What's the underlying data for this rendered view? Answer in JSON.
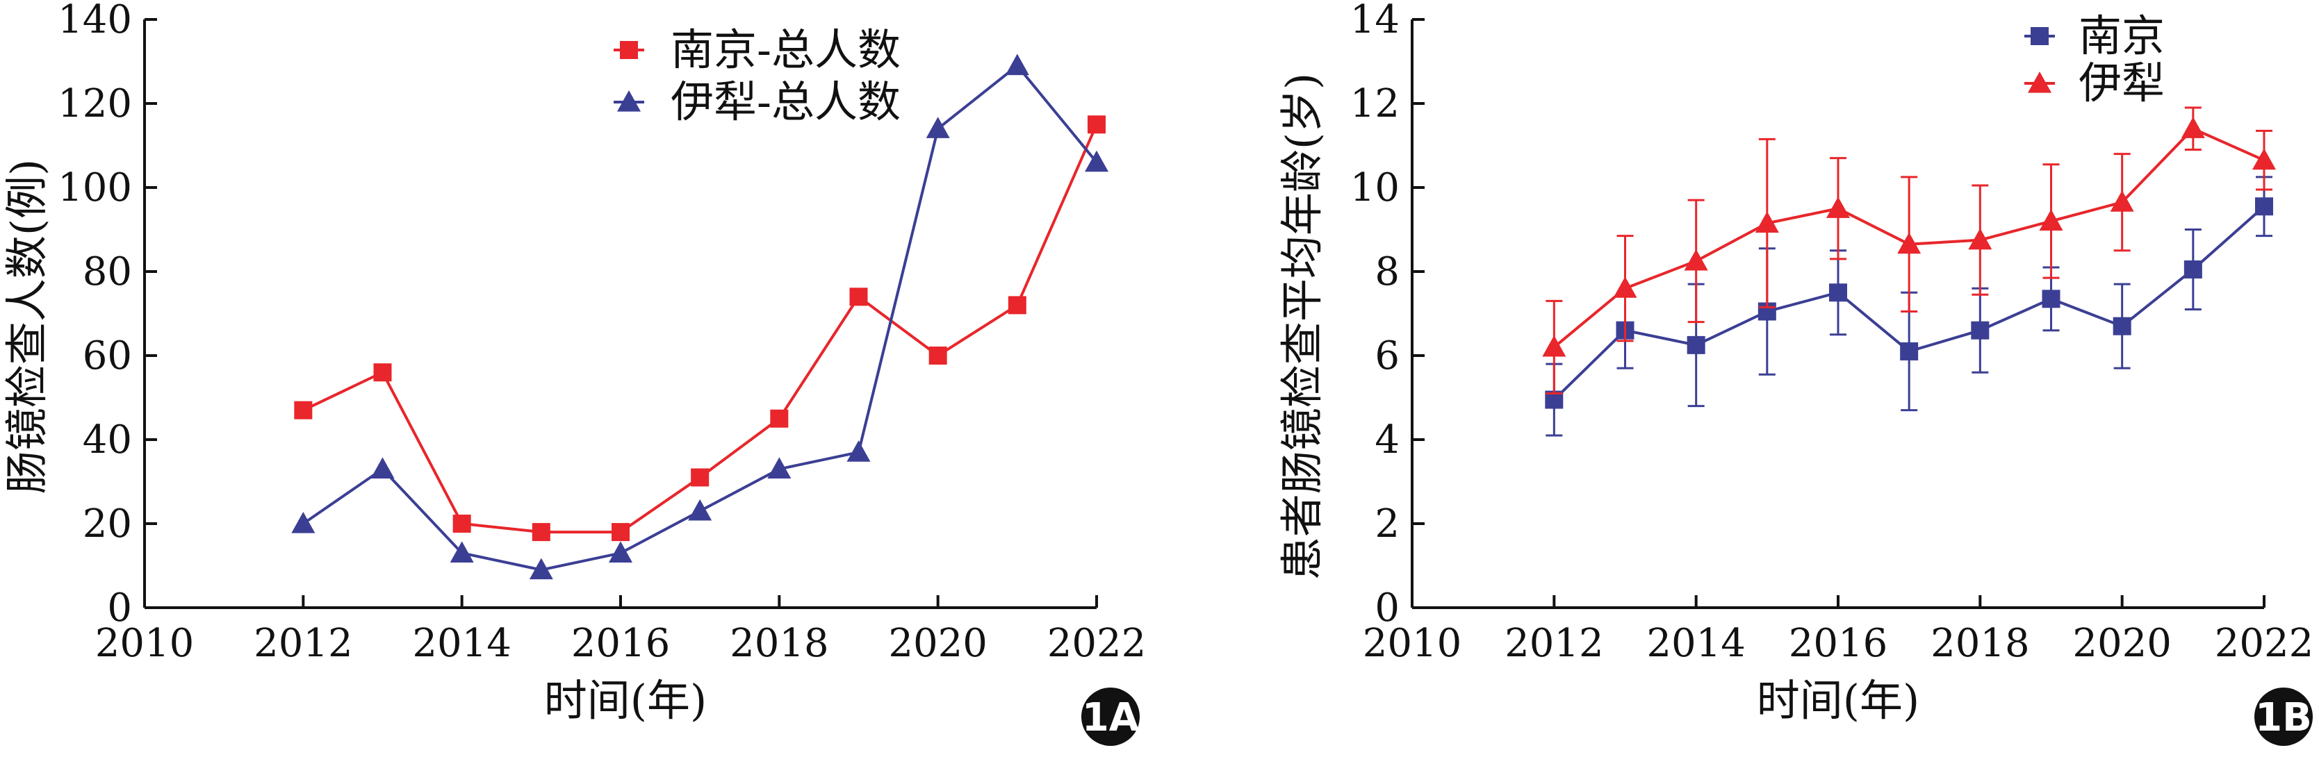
{
  "chart_data": [
    {
      "panel": "1A",
      "type": "line",
      "xlabel": "时间(年)",
      "ylabel": "肠镜检查人数(例)",
      "xlim": [
        2010,
        2022
      ],
      "ylim": [
        0,
        140
      ],
      "xticks": [
        "2010",
        "2012",
        "2014",
        "2016",
        "2018",
        "2020",
        "2022"
      ],
      "yticks": [
        "0",
        "20",
        "40",
        "60",
        "80",
        "100",
        "120",
        "140"
      ],
      "legend_position": "top-right",
      "x": [
        2012,
        2013,
        2014,
        2015,
        2016,
        2017,
        2018,
        2019,
        2020,
        2021,
        2022
      ],
      "series": [
        {
          "name": "南京-总人数",
          "color": "#e8262b",
          "marker": "square",
          "values": [
            47,
            56,
            20,
            18,
            18,
            31,
            45,
            74,
            60,
            72,
            115
          ]
        },
        {
          "name": "伊犁-总人数",
          "color": "#3b3f94",
          "marker": "triangle",
          "values": [
            20,
            33,
            13,
            9,
            13,
            23,
            33,
            37,
            114,
            129,
            106
          ]
        }
      ]
    },
    {
      "panel": "1B",
      "type": "line",
      "xlabel": "时间(年)",
      "ylabel": "患者肠镜检查平均年龄(岁)",
      "xlim": [
        2010,
        2022
      ],
      "ylim": [
        0,
        14
      ],
      "xticks": [
        "2010",
        "2012",
        "2014",
        "2016",
        "2018",
        "2020",
        "2022"
      ],
      "yticks": [
        "0",
        "2",
        "4",
        "6",
        "8",
        "10",
        "12",
        "14"
      ],
      "legend_position": "top-right",
      "x": [
        2012,
        2013,
        2014,
        2015,
        2016,
        2017,
        2018,
        2019,
        2020,
        2021,
        2022
      ],
      "series": [
        {
          "name": "南京",
          "color": "#3b3f94",
          "marker": "square",
          "values": [
            4.95,
            6.6,
            6.25,
            7.05,
            7.5,
            6.1,
            6.6,
            7.35,
            6.7,
            8.05,
            9.55
          ],
          "error": [
            0.85,
            0.9,
            1.45,
            1.5,
            1.0,
            1.4,
            1.0,
            0.75,
            1.0,
            0.95,
            0.7
          ]
        },
        {
          "name": "伊犁",
          "color": "#e8262b",
          "marker": "triangle",
          "values": [
            6.2,
            7.6,
            8.25,
            9.15,
            9.5,
            8.65,
            8.75,
            9.2,
            9.65,
            11.4,
            10.65
          ],
          "error": [
            1.1,
            1.25,
            1.45,
            2.0,
            1.2,
            1.6,
            1.3,
            1.35,
            1.15,
            0.5,
            0.7
          ]
        }
      ]
    }
  ]
}
